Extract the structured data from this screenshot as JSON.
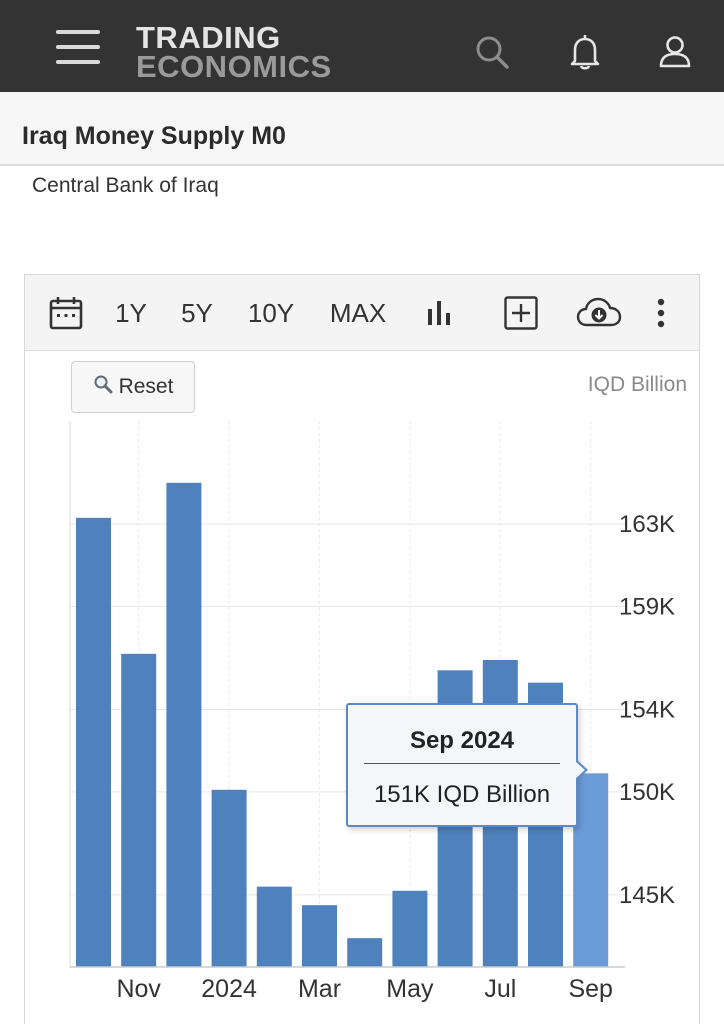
{
  "header": {
    "logo_line1": "TRADING",
    "logo_line2": "ECONOMICS",
    "icons": [
      "menu-icon",
      "search-icon",
      "bell-icon",
      "user-icon"
    ]
  },
  "page": {
    "title": "Iraq Money Supply M0",
    "source": "Central Bank of Iraq"
  },
  "toolbar": {
    "ranges": [
      "1Y",
      "5Y",
      "10Y",
      "MAX"
    ],
    "icons": [
      "calendar-icon",
      "bar-chart-icon",
      "add-icon",
      "download-icon",
      "more-icon"
    ]
  },
  "reset_label": "Reset",
  "unit_label": "IQD Billion",
  "colors": {
    "bar": "#4f81bd",
    "bar_highlight": "#6b9bd6",
    "header_bg": "#333333"
  },
  "tooltip": {
    "date": "Sep 2024",
    "value": "151K IQD Billion"
  },
  "chart_data": {
    "type": "bar",
    "categories": [
      "Oct 2023",
      "Nov 2023",
      "Dec 2023",
      "Jan 2024",
      "Feb 2024",
      "Mar 2024",
      "Apr 2024",
      "May 2024",
      "Jun 2024",
      "Jul 2024",
      "Aug 2024",
      "Sep 2024"
    ],
    "values": [
      163300,
      156700,
      165000,
      150100,
      145400,
      144500,
      142900,
      145200,
      155900,
      156400,
      155300,
      150900
    ],
    "x_tick_labels": [
      "Nov",
      "2024",
      "Mar",
      "May",
      "Jul",
      "Sep"
    ],
    "x_tick_categories": [
      "Nov 2023",
      "Jan 2024",
      "Mar 2024",
      "May 2024",
      "Jul 2024",
      "Sep 2024"
    ],
    "y_ticks": [
      145000,
      150000,
      154000,
      159000,
      163000
    ],
    "y_tick_labels": [
      "145K",
      "150K",
      "154K",
      "159K",
      "163K"
    ],
    "ylim": [
      141500,
      168000
    ],
    "ylabel": "IQD Billion",
    "highlighted": "Sep 2024",
    "grid": true
  }
}
